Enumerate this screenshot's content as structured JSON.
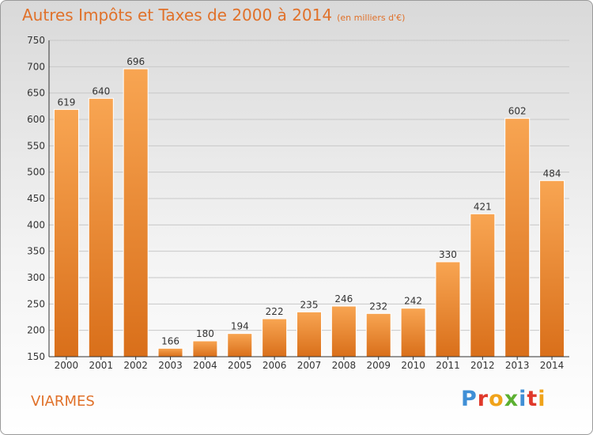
{
  "header": {
    "title": "Autres Impôts et Taxes de 2000 à 2014",
    "unit": "(en milliers d'€)"
  },
  "commune": "VIARMES",
  "logo": {
    "letters": [
      "P",
      "r",
      "o",
      "x",
      "i",
      "t",
      "i"
    ]
  },
  "chart_data": {
    "type": "bar",
    "title": "Autres Impôts et Taxes de 2000 à 2014",
    "subtitle": "(en milliers d'€)",
    "xlabel": "",
    "ylabel": "",
    "categories": [
      "2000",
      "2001",
      "2002",
      "2003",
      "2004",
      "2005",
      "2006",
      "2007",
      "2008",
      "2009",
      "2010",
      "2011",
      "2012",
      "2013",
      "2014"
    ],
    "values": [
      619,
      640,
      696,
      166,
      180,
      194,
      222,
      235,
      246,
      232,
      242,
      330,
      421,
      602,
      484
    ],
    "ylim": [
      150,
      750
    ],
    "yticks": [
      150,
      200,
      250,
      300,
      350,
      400,
      450,
      500,
      550,
      600,
      650,
      700,
      750
    ],
    "grid": true,
    "bar_color": "#f0913a"
  }
}
